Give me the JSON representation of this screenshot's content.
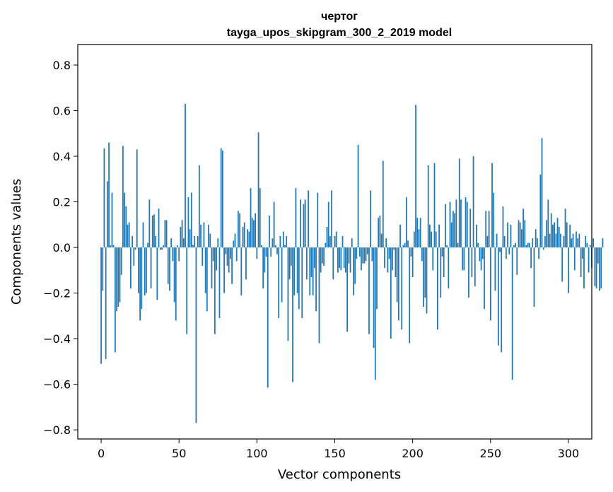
{
  "chart_data": {
    "type": "bar",
    "title": "чертог",
    "subtitle": "tayga_upos_skipgram_300_2_2019 model",
    "xlabel": "Vector components",
    "ylabel": "Components values",
    "xlim": [
      -15,
      315
    ],
    "ylim": [
      -0.84,
      0.89
    ],
    "xticks": [
      0,
      50,
      100,
      150,
      200,
      250,
      300
    ],
    "yticks": [
      -0.8,
      -0.6,
      -0.4,
      -0.2,
      0.0,
      0.2,
      0.4,
      0.6,
      0.8
    ],
    "ytick_labels": [
      "−0.8",
      "−0.6",
      "−0.4",
      "−0.2",
      "0.0",
      "0.2",
      "0.4",
      "0.6",
      "0.8"
    ],
    "bar_color": "#1f77b4",
    "grid": false,
    "legend": "none",
    "x_start": 0,
    "values": [
      -0.51,
      -0.19,
      0.435,
      -0.49,
      0.29,
      0.46,
      0.01,
      0.24,
      0.01,
      -0.46,
      -0.28,
      -0.26,
      -0.24,
      -0.12,
      0.445,
      0.24,
      0.18,
      0.1,
      0.11,
      -0.18,
      0.05,
      -0.08,
      -0.01,
      0.43,
      -0.2,
      -0.32,
      -0.27,
      0.11,
      -0.21,
      -0.2,
      0.02,
      0.21,
      -0.18,
      0.14,
      0.145,
      0.05,
      -0.23,
      0.17,
      -0.01,
      -0.01,
      0.01,
      0.12,
      0.12,
      -0.16,
      -0.19,
      0.04,
      -0.06,
      -0.24,
      -0.32,
      0.01,
      -0.06,
      0.09,
      0.12,
      0.04,
      0.63,
      -0.38,
      0.22,
      0.08,
      0.24,
      0.01,
      0.05,
      -0.77,
      0.05,
      0.36,
      0.1,
      -0.08,
      0.11,
      -0.2,
      -0.28,
      0.1,
      0.06,
      -0.18,
      -0.06,
      -0.38,
      -0.1,
      0.04,
      -0.31,
      0.435,
      0.425,
      -0.2,
      -0.03,
      -0.08,
      -0.11,
      -0.05,
      -0.16,
      0.03,
      0.06,
      -0.06,
      0.16,
      0.15,
      -0.21,
      0.09,
      0.11,
      -0.14,
      0.08,
      0.07,
      0.26,
      0.13,
      0.12,
      0.15,
      -0.05,
      0.505,
      0.26,
      0.01,
      -0.18,
      -0.11,
      -0.04,
      -0.615,
      0.14,
      -0.04,
      0.04,
      0.2,
      0.01,
      -0.03,
      -0.31,
      0.05,
      -0.24,
      0.07,
      0.01,
      0.05,
      -0.41,
      -0.14,
      -0.08,
      -0.59,
      -0.21,
      0.26,
      -0.2,
      -0.27,
      0.21,
      -0.31,
      0.19,
      0.21,
      -0.14,
      0.25,
      -0.21,
      -0.13,
      -0.21,
      -0.09,
      -0.28,
      0.24,
      -0.42,
      -0.11,
      -0.07,
      -0.08,
      0.02,
      0.09,
      0.2,
      0.05,
      0.25,
      -0.14,
      0.05,
      0.07,
      -0.11,
      -0.09,
      -0.1,
      0.05,
      -0.09,
      -0.11,
      -0.37,
      -0.07,
      -0.11,
      0.04,
      -0.21,
      -0.16,
      -0.05,
      0.45,
      -0.04,
      -0.1,
      -0.07,
      -0.07,
      -0.06,
      -0.03,
      -0.38,
      0.25,
      -0.06,
      -0.44,
      -0.58,
      -0.27,
      0.13,
      0.14,
      0.06,
      0.38,
      -0.09,
      0.04,
      -0.11,
      -0.05,
      -0.4,
      -0.1,
      -0.01,
      -0.13,
      -0.24,
      -0.32,
      0.1,
      -0.36,
      0.01,
      0.02,
      0.22,
      0.03,
      -0.42,
      -0.04,
      -0.13,
      0.07,
      0.625,
      0.13,
      0.08,
      0.13,
      -0.06,
      -0.26,
      -0.22,
      -0.29,
      0.36,
      0.1,
      0.07,
      -0.1,
      0.37,
      0.07,
      -0.36,
      0.1,
      -0.22,
      -0.04,
      -0.13,
      0.19,
      0.01,
      -0.18,
      0.2,
      0.11,
      0.16,
      0.15,
      0.21,
      0.02,
      0.39,
      0.21,
      -0.1,
      -0.1,
      0.22,
      0.2,
      -0.22,
      0.17,
      -0.13,
      0.4,
      -0.17,
      0.1,
      0.02,
      -0.06,
      -0.1,
      -0.05,
      -0.27,
      0.16,
      0.05,
      0.16,
      -0.32,
      0.37,
      0.24,
      -0.19,
      0.06,
      -0.43,
      -0.02,
      -0.46,
      0.18,
      0.05,
      -0.05,
      0.11,
      -0.03,
      0.1,
      -0.58,
      0.01,
      0.02,
      -0.12,
      0.12,
      0.11,
      0.08,
      0.17,
      0.12,
      0.01,
      0.02,
      0.02,
      -0.09,
      0.04,
      -0.26,
      0.08,
      0.04,
      -0.05,
      0.32,
      0.48,
      -0.01,
      0.05,
      0.12,
      0.21,
      0.06,
      0.15,
      0.1,
      0.11,
      0.06,
      0.13,
      0.09,
      0.06,
      -0.15,
      0.05,
      0.17,
      0.11,
      -0.2,
      0.1,
      0.04,
      0.06,
      -0.1,
      0.07,
      0.04,
      0.06,
      -0.13,
      -0.05,
      -0.18,
      0.05,
      0.02,
      -0.11,
      0.01,
      -0.09,
      0.04,
      -0.17,
      -0.18,
      -0.07,
      -0.19,
      -0.18,
      0.04
    ]
  }
}
